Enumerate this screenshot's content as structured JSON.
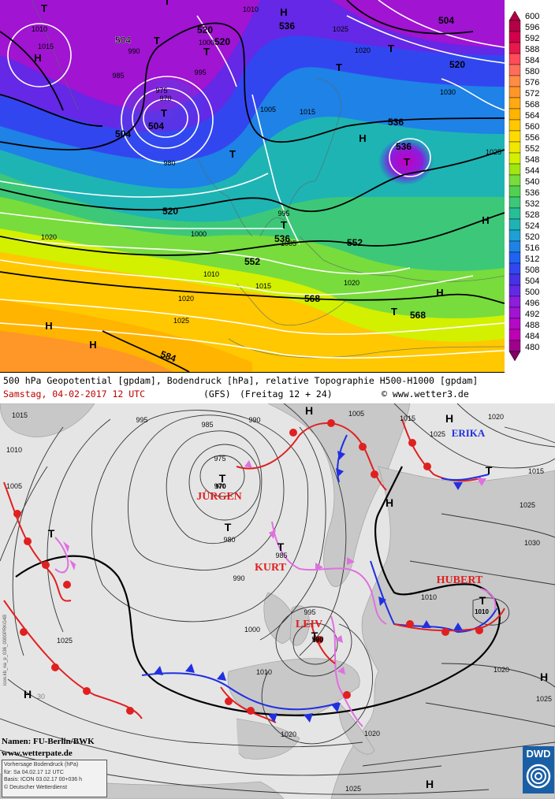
{
  "top_chart": {
    "caption_line1": "500 hPa Geopotential [gpdam], Bodendruck [hPa], relative Topographie H500-H1000 [gpdam]",
    "date_label": "Samstag, 04-02-2017  12 UTC",
    "model_label": "(GFS)",
    "run_label": "(Freitag 12 + 24)",
    "source_label": "© www.wetter3.de",
    "colorbar_ticks": [
      "600",
      "596",
      "592",
      "588",
      "584",
      "580",
      "576",
      "572",
      "568",
      "564",
      "560",
      "556",
      "552",
      "548",
      "544",
      "540",
      "536",
      "532",
      "528",
      "524",
      "520",
      "516",
      "512",
      "508",
      "504",
      "500",
      "496",
      "492",
      "488",
      "484",
      "480"
    ],
    "colorbar_colors": [
      "#b40046",
      "#d2004b",
      "#e6194b",
      "#ff4b5a",
      "#ff6e5a",
      "#ff8c46",
      "#ff9628",
      "#ffaa14",
      "#ffb400",
      "#ffc800",
      "#ffdc00",
      "#f0e600",
      "#d2f000",
      "#a0e614",
      "#78dc3c",
      "#50d250",
      "#3cc878",
      "#28be96",
      "#1eb4b4",
      "#1ea0d2",
      "#1e82e6",
      "#1e64f0",
      "#3246f0",
      "#4632e6",
      "#6428e6",
      "#8c1edc",
      "#a014d2",
      "#b40ac8",
      "#be00b4",
      "#a0008c",
      "#800064"
    ],
    "h500_labels": [
      "504",
      "520",
      "536",
      "504",
      "504",
      "536",
      "520",
      "552",
      "536",
      "552",
      "568",
      "568",
      "584",
      "520",
      "536",
      "504",
      "520"
    ],
    "pressure_labels": [
      "1010",
      "1015",
      "990",
      "985",
      "980",
      "975",
      "970",
      "995",
      "1000",
      "1005",
      "1010",
      "1015",
      "1020",
      "1025",
      "1030",
      "1025",
      "1020",
      "1010",
      "1015",
      "1020",
      "1025",
      "995",
      "1005",
      "1000",
      "1020"
    ],
    "centers": [
      "T",
      "H",
      "T",
      "T",
      "T",
      "T",
      "T",
      "T",
      "H",
      "T",
      "H",
      "H",
      "T",
      "T",
      "H",
      "T",
      "H",
      "H"
    ]
  },
  "bottom_chart": {
    "isobar_labels": [
      "1015",
      "1010",
      "1005",
      "995",
      "985",
      "990",
      "975",
      "970",
      "980",
      "985",
      "990",
      "1000",
      "995",
      "990",
      "1010",
      "1025",
      "1020",
      "1005",
      "1015",
      "1025",
      "1030",
      "1020",
      "1025",
      "1015",
      "1010",
      "1020",
      "1025",
      "1020",
      "1025",
      "30"
    ],
    "lows": [
      {
        "letter": "T",
        "name": "JÜRGEN",
        "value": "970"
      },
      {
        "letter": "T",
        "name": "KURT",
        "value": "985"
      },
      {
        "letter": "T",
        "name": "LEIV",
        "value": "990"
      },
      {
        "letter": "T",
        "name": "HUBERT",
        "value": "1010"
      },
      {
        "letter": "T",
        "name": "",
        "value": "980"
      },
      {
        "letter": "T",
        "name": "",
        "value": ""
      },
      {
        "letter": "T",
        "name": "",
        "value": ""
      }
    ],
    "highs": [
      {
        "letter": "H",
        "name": "ERIKA"
      },
      {
        "letter": "H",
        "name": ""
      },
      {
        "letter": "H",
        "name": ""
      },
      {
        "letter": "H",
        "name": ""
      },
      {
        "letter": "H",
        "name": ""
      },
      {
        "letter": "H",
        "name": ""
      }
    ],
    "namen": "Namen: FU-Berlin/BWK",
    "site": "www.wetterpate.de",
    "forecast_line1": "Vorhersage Bodendruck (hPa)",
    "forecast_line2": "für:  Sa 04.02.17  12 UTC",
    "forecast_line3": "Basis: ICON  03.02.17 00+036 h",
    "forecast_line4": "© Deutscher Wetterdienst",
    "logo": "DWD",
    "credit": "icon.kb_na_p_036_0000PRKG4B"
  }
}
